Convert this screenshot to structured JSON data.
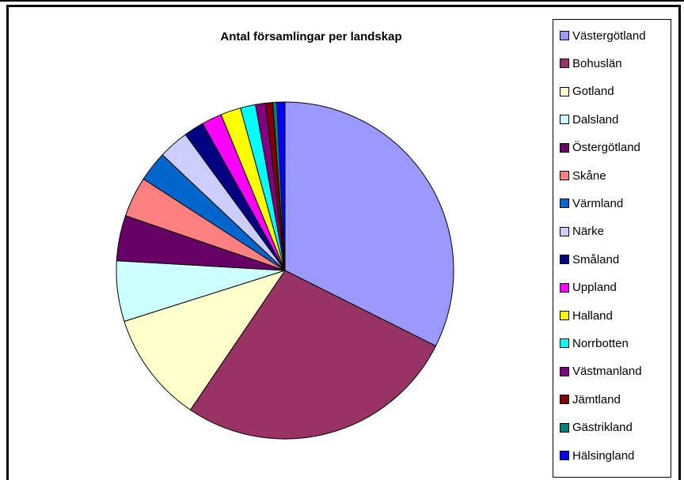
{
  "chart_data": {
    "type": "pie",
    "title": "Antal församlingar per landskap",
    "legend_position": "right",
    "slices": [
      {
        "label": "Västergötland",
        "value": 33.5,
        "color": "#9999FF"
      },
      {
        "label": "Bohuslän",
        "value": 28.0,
        "color": "#993366"
      },
      {
        "label": "Gotland",
        "value": 11.0,
        "color": "#FFFFCC"
      },
      {
        "label": "Dalsland",
        "value": 6.0,
        "color": "#CCFFFF"
      },
      {
        "label": "Östergötland",
        "value": 4.5,
        "color": "#660066"
      },
      {
        "label": "Skåne",
        "value": 4.0,
        "color": "#FF8080"
      },
      {
        "label": "Värmland",
        "value": 3.0,
        "color": "#0066CC"
      },
      {
        "label": "Närke",
        "value": 3.0,
        "color": "#CCCCFF"
      },
      {
        "label": "Småland",
        "value": 2.0,
        "color": "#000080"
      },
      {
        "label": "Uppland",
        "value": 2.0,
        "color": "#FF00FF"
      },
      {
        "label": "Halland",
        "value": 2.0,
        "color": "#FFFF00"
      },
      {
        "label": "Norrbotten",
        "value": 1.5,
        "color": "#00FFFF"
      },
      {
        "label": "Västmanland",
        "value": 1.0,
        "color": "#800080"
      },
      {
        "label": "Jämtland",
        "value": 0.7,
        "color": "#800000"
      },
      {
        "label": "Gästrikland",
        "value": 0.4,
        "color": "#008080"
      },
      {
        "label": "Hälsingland",
        "value": 0.8,
        "color": "#0000FF"
      }
    ]
  }
}
